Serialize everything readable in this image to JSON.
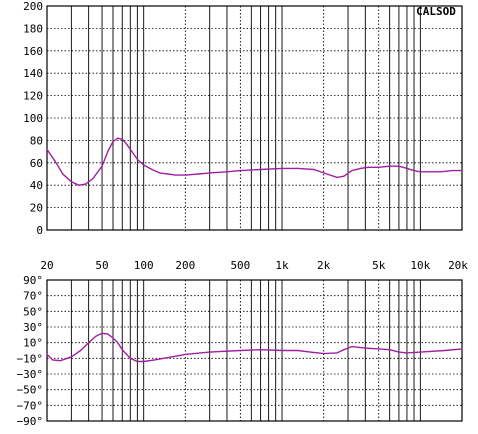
{
  "brand": "CALSOD",
  "colors": {
    "curve": "#a020a0",
    "grid": "#000000",
    "background": "#ffffff"
  },
  "chart_data": [
    {
      "type": "line",
      "x_scale": "log",
      "xlim": [
        20,
        20000
      ],
      "ylim": [
        0,
        200
      ],
      "y_ticks": [
        0,
        20,
        40,
        60,
        80,
        100,
        120,
        140,
        160,
        180,
        200
      ],
      "y_tick_labels": [
        "0",
        "20",
        "40",
        "60",
        "80",
        "100",
        "120",
        "140",
        "160",
        "180",
        "200"
      ],
      "x_tick_labels": [
        {
          "value": 20,
          "label": "20"
        },
        {
          "value": 50,
          "label": "50"
        },
        {
          "value": 100,
          "label": "100"
        },
        {
          "value": 200,
          "label": "200"
        },
        {
          "value": 500,
          "label": "500"
        },
        {
          "value": 1000,
          "label": "1k"
        },
        {
          "value": 2000,
          "label": "2k"
        },
        {
          "value": 5000,
          "label": "5k"
        },
        {
          "value": 10000,
          "label": "10k"
        },
        {
          "value": 20000,
          "label": "20k"
        }
      ],
      "grid": true,
      "series": [
        {
          "x": [
            20,
            23,
            26,
            30,
            34,
            38,
            43,
            50,
            55,
            60,
            65,
            70,
            75,
            80,
            90,
            100,
            115,
            130,
            150,
            170,
            200,
            250,
            300,
            400,
            500,
            700,
            1000,
            1300,
            1700,
            2000,
            2500,
            2800,
            3200,
            3700,
            4200,
            5000,
            6000,
            7000,
            8000,
            9000,
            10000,
            12000,
            14000,
            17000,
            20000
          ],
          "y": [
            72,
            61,
            50,
            43,
            40,
            41,
            46,
            57,
            70,
            79,
            82,
            81,
            77,
            72,
            63,
            58,
            54,
            51,
            50,
            49,
            49,
            50,
            51,
            52,
            53,
            54,
            55,
            55,
            54,
            51,
            47,
            48,
            53,
            55,
            56,
            56,
            57,
            57,
            55,
            53,
            52,
            52,
            52,
            53,
            53
          ]
        }
      ]
    },
    {
      "type": "line",
      "x_scale": "log",
      "xlim": [
        20,
        20000
      ],
      "ylim": [
        -90,
        90
      ],
      "y_ticks": [
        90,
        70,
        50,
        30,
        10,
        -10,
        -30,
        -50,
        -70,
        -90
      ],
      "y_tick_labels": [
        "90°",
        "70°",
        "50°",
        "30°",
        "10°",
        "−10°",
        "−30°",
        "−50°",
        "−70°",
        "−90°"
      ],
      "grid": true,
      "series": [
        {
          "x": [
            20,
            22,
            25,
            30,
            35,
            40,
            45,
            50,
            55,
            60,
            65,
            70,
            80,
            90,
            100,
            120,
            150,
            200,
            300,
            500,
            700,
            1000,
            1300,
            1600,
            2000,
            2500,
            2800,
            3200,
            4000,
            5000,
            6000,
            7000,
            8000,
            10000,
            15000,
            20000
          ],
          "y": [
            -5,
            -12,
            -13,
            -8,
            0,
            10,
            18,
            22,
            21,
            16,
            10,
            1,
            -10,
            -14,
            -14,
            -12,
            -9,
            -5,
            -2,
            0,
            1,
            0,
            0,
            -2,
            -4,
            -3,
            1,
            5,
            3,
            2,
            1,
            -2,
            -3,
            -2,
            0,
            2
          ]
        }
      ]
    }
  ]
}
